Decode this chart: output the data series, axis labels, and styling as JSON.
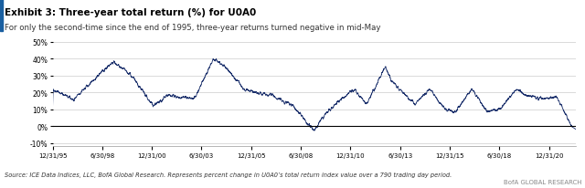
{
  "title": "Exhibit 3: Three-year total return (%) for U0A0",
  "subtitle": "For only the second-time since the end of 1995, three-year returns turned negative in mid-May",
  "source": "Source: ICE Data Indices, LLC, BofA Global Research. Represents percent change in U0A0’s total return index value over a 790 trading day period.",
  "branding": "BofA GLOBAL RESEARCH",
  "line_color": "#1a2f6b",
  "background_color": "#ffffff",
  "grid_color": "#cccccc",
  "title_bar_color": "#1a5fa0",
  "ylim": [
    -0.12,
    0.55
  ],
  "yticks": [
    -0.1,
    0.0,
    0.1,
    0.2,
    0.3,
    0.4,
    0.5
  ],
  "ytick_labels": [
    "-10%",
    "0%",
    "10%",
    "20%",
    "30%",
    "40%",
    "50%"
  ],
  "xtick_labels": [
    "12/31/95",
    "6/30/98",
    "12/31/00",
    "6/30/03",
    "12/31/05",
    "6/30/08",
    "12/31/10",
    "6/30/13",
    "12/31/15",
    "6/30/18",
    "12/31/20"
  ]
}
